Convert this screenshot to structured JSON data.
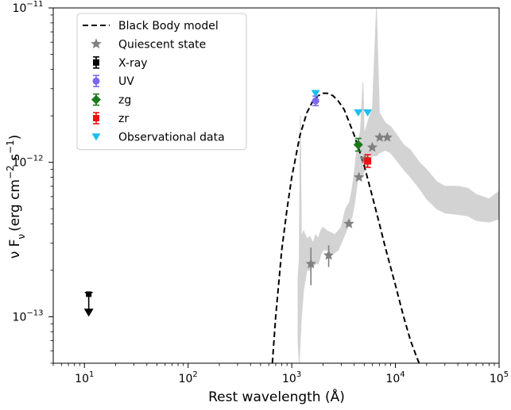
{
  "chart_data": {
    "type": "scatter",
    "xlabel": "Rest wavelength (Å)",
    "ylabel_parts": {
      "nu": "ν F",
      "sub": "ν",
      "unit_open": "(erg cm",
      "exp1": "−2",
      "mid": " s",
      "exp2": "−1",
      "unit_close": ")"
    },
    "x_scale": "log",
    "y_scale": "log",
    "xlim": [
      5,
      100000
    ],
    "ylim": [
      5e-14,
      1e-11
    ],
    "x_ticks": [
      {
        "value": 10,
        "base": "10",
        "exp": "1"
      },
      {
        "value": 100,
        "base": "10",
        "exp": "2"
      },
      {
        "value": 1000,
        "base": "10",
        "exp": "3"
      },
      {
        "value": 10000,
        "base": "10",
        "exp": "4"
      },
      {
        "value": 100000,
        "base": "10",
        "exp": "5"
      }
    ],
    "y_ticks": [
      {
        "value": 1e-13,
        "base": "10",
        "exp": "−13"
      },
      {
        "value": 1e-12,
        "base": "10",
        "exp": "−12"
      },
      {
        "value": 1e-11,
        "base": "10",
        "exp": "−11"
      }
    ],
    "legend_position": "top-left",
    "legend": [
      {
        "label": "Black Body model",
        "marker": "dashed-line",
        "color": "#000000"
      },
      {
        "label": "Quiescent state",
        "marker": "star",
        "color": "#808080"
      },
      {
        "label": "X-ray",
        "marker": "square-errorbar",
        "color": "#000000"
      },
      {
        "label": "UV",
        "marker": "circle-errorbar",
        "color": "#7b68ee"
      },
      {
        "label": "zg",
        "marker": "diamond-errorbar",
        "color": "#1a7a1a"
      },
      {
        "label": "zr",
        "marker": "square-errorbar",
        "color": "#ee1111"
      },
      {
        "label": "Observational data",
        "marker": "triangle-down",
        "color": "#1cbfee"
      }
    ],
    "series": [
      {
        "name": "Black Body model",
        "kind": "line",
        "color": "#000000",
        "x": [
          650,
          700,
          800,
          900,
          1000,
          1200,
          1400,
          1600,
          1800,
          2000,
          2200,
          2500,
          2800,
          3200,
          3600,
          4000,
          5000,
          6000,
          7000,
          8000,
          10000,
          12000,
          14000,
          16000,
          18000
        ],
        "y": [
          5e-14,
          1e-13,
          2.7e-13,
          5e-13,
          8e-13,
          1.5e-12,
          2.1e-12,
          2.5e-12,
          2.7e-12,
          2.8e-12,
          2.8e-12,
          2.7e-12,
          2.5e-12,
          2.2e-12,
          1.8e-12,
          1.5e-12,
          9.5e-13,
          6e-13,
          4e-13,
          2.8e-13,
          1.6e-13,
          1e-13,
          7e-14,
          5.5e-14,
          4.5e-14
        ]
      },
      {
        "name": "Quiescent state",
        "kind": "scatter",
        "color": "#808080",
        "x": [
          1530,
          2270,
          3560,
          4450,
          5080,
          5980,
          7060,
          8350
        ],
        "y": [
          2.2e-13,
          2.5e-13,
          4e-13,
          8e-13,
          1.05e-12,
          1.25e-12,
          1.45e-12,
          1.45e-12
        ],
        "yerr_low": [
          1.6e-13,
          2.1e-13,
          4e-13,
          8e-13,
          1.05e-12,
          1.25e-12,
          1.45e-12,
          1.45e-12
        ],
        "yerr_high": [
          2.8e-13,
          2.9e-13,
          4e-13,
          8e-13,
          1.05e-12,
          1.25e-12,
          1.45e-12,
          1.45e-12
        ]
      },
      {
        "name": "X-ray",
        "kind": "upper-limit",
        "color": "#000000",
        "x": [
          11
        ],
        "y": [
          1.4e-13
        ],
        "y_arrow_to": [
          1.05e-13
        ]
      },
      {
        "name": "UV",
        "kind": "scatter",
        "color": "#7b68ee",
        "x": [
          1700
        ],
        "y": [
          2.5e-12
        ]
      },
      {
        "name": "zg",
        "kind": "scatter",
        "color": "#1a7a1a",
        "x": [
          4380
        ],
        "y": [
          1.3e-12
        ]
      },
      {
        "name": "zr",
        "kind": "scatter",
        "color": "#ee1111",
        "x": [
          5400
        ],
        "y": [
          1.02e-12
        ]
      },
      {
        "name": "Observational data",
        "kind": "scatter",
        "color": "#1cbfee",
        "x": [
          1700,
          4380,
          5400
        ],
        "y": [
          2.8e-12,
          2.1e-12,
          2.1e-12
        ]
      }
    ],
    "quiescent_spectrum": {
      "color": "#d3d3d3",
      "x": [
        1150,
        1180,
        1210,
        1240,
        1300,
        1400,
        1500,
        1600,
        1700,
        1800,
        1900,
        2000,
        2200,
        2400,
        2600,
        2800,
        3000,
        3300,
        3600,
        3800,
        4000,
        4300,
        4600,
        4860,
        5000,
        5500,
        6000,
        6563,
        7000,
        8000,
        9000,
        10000,
        12000,
        14000,
        17000,
        20000,
        25000,
        30000,
        40000,
        50000,
        60000,
        80000,
        100000
      ],
      "y_high": [
        1.8e-13,
        2.3e-13,
        2e-12,
        3.3e-13,
        3.6e-13,
        3.2e-13,
        3.3e-13,
        3e-13,
        3.4e-13,
        3.2e-13,
        3.6e-13,
        3.8e-13,
        3.6e-13,
        3.5e-13,
        3.4e-13,
        3.6e-13,
        3.8e-13,
        5e-13,
        5.5e-13,
        6.6e-13,
        8.5e-13,
        1.3e-12,
        1.6e-12,
        3.3e-12,
        1.5e-12,
        1.9e-12,
        2.2e-12,
        1e-11,
        2.1e-12,
        1.8e-12,
        1.7e-12,
        1.55e-12,
        1.3e-12,
        1.2e-12,
        1e-12,
        9e-13,
        7.5e-13,
        7e-13,
        7e-13,
        6.8e-13,
        6.2e-13,
        5.8e-13,
        6.5e-13
      ],
      "y_low": [
        7e-14,
        5e-14,
        7e-14,
        1e-13,
        1.5e-13,
        2e-13,
        2e-13,
        2.1e-13,
        2.2e-13,
        2.2e-13,
        2.5e-13,
        2.7e-13,
        2.7e-13,
        2.6e-13,
        2.6e-13,
        2.7e-13,
        3e-13,
        3.5e-13,
        4e-13,
        4.4e-13,
        5.2e-13,
        7.5e-13,
        8.5e-13,
        8e-13,
        8.8e-13,
        1e-12,
        1.1e-12,
        1.1e-12,
        1.15e-12,
        1.2e-12,
        1.15e-12,
        1.05e-12,
        9e-13,
        8e-13,
        6.8e-13,
        5.8e-13,
        5e-13,
        4.7e-13,
        4.6e-13,
        4.5e-13,
        4.2e-13,
        4.1e-13,
        4.3e-13
      ]
    }
  }
}
